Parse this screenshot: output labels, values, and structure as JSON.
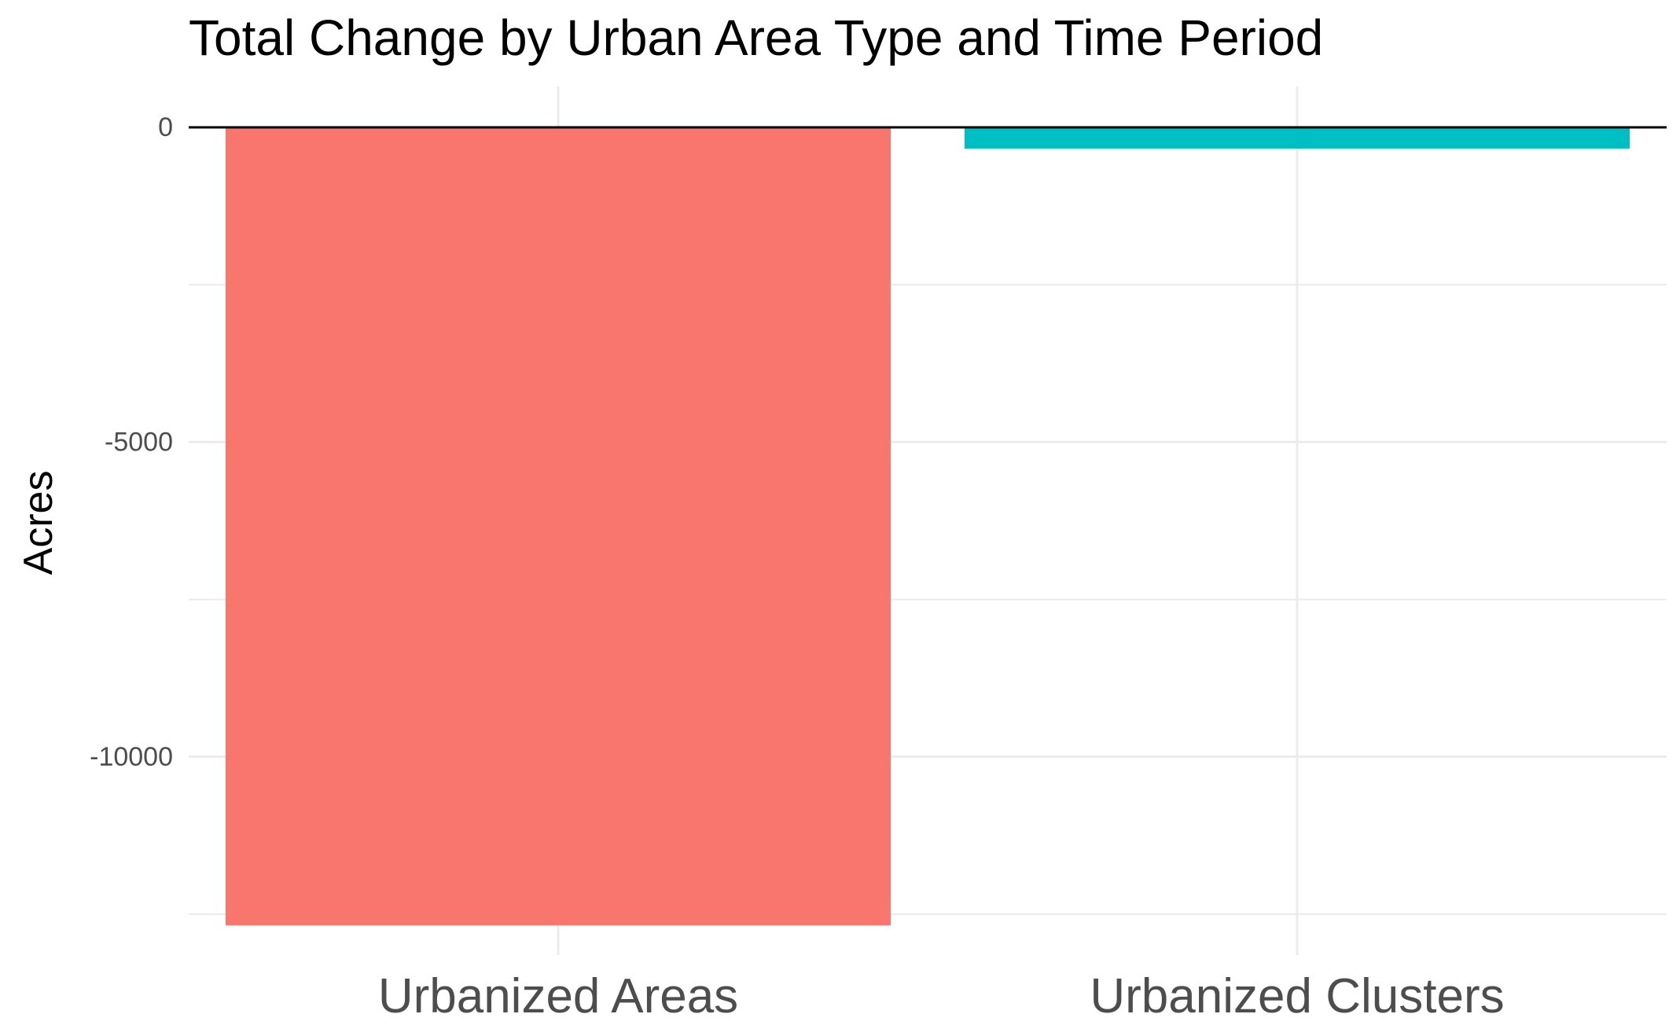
{
  "chart_data": {
    "type": "bar",
    "title": "Total Change by Urban Area Type and Time Period",
    "xlabel": "",
    "ylabel": "Acres",
    "categories": [
      "Urbanized Areas",
      "Urbanized Clusters"
    ],
    "values": [
      -12680,
      -340
    ],
    "colors": [
      "#F8766D",
      "#00BFC4"
    ],
    "ylim": [
      -13150,
      650
    ],
    "y_ticks": [
      0,
      -5000,
      -10000
    ],
    "y_tick_labels": [
      "0",
      "-5000",
      "-10000"
    ],
    "y_minor_ticks": [
      -2500,
      -7500,
      -12500
    ],
    "reference_line_y": 0,
    "grid": true,
    "legend": "none"
  }
}
